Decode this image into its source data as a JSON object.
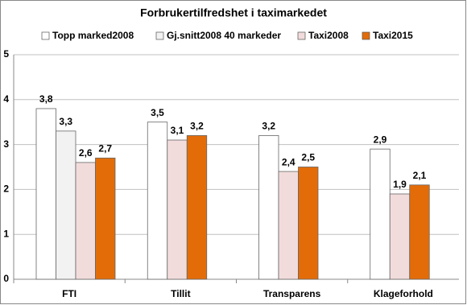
{
  "chart_data": {
    "type": "bar",
    "title": "Forbrukertilfredshet i taximarkedet",
    "categories": [
      "FTI",
      "Tillit",
      "Transparens",
      "Klageforhold"
    ],
    "series": [
      {
        "name": "Topp marked2008",
        "color": "#ffffff",
        "values": [
          3.8,
          3.5,
          3.2,
          2.9
        ],
        "value_labels": [
          "3,8",
          "3,5",
          "3,2",
          "2,9"
        ]
      },
      {
        "name": "Gj.snitt2008 40 markeder",
        "color": "#f2f2f2",
        "values": [
          3.3,
          null,
          null,
          null
        ],
        "value_labels": [
          "3,3",
          null,
          null,
          null
        ]
      },
      {
        "name": "Taxi2008",
        "color": "#f2dcdb",
        "values": [
          2.6,
          3.1,
          2.4,
          1.9
        ],
        "value_labels": [
          "2,6",
          "3,1",
          "2,4",
          "1,9"
        ]
      },
      {
        "name": "Taxi2015",
        "color": "#e36c09",
        "values": [
          2.7,
          3.2,
          2.5,
          2.1
        ],
        "value_labels": [
          "2,7",
          "3,2",
          "2,5",
          "2,1"
        ]
      }
    ],
    "ylim": [
      0,
      5
    ],
    "yticks": [
      0,
      1,
      2,
      3,
      4,
      5
    ],
    "grid": true
  }
}
